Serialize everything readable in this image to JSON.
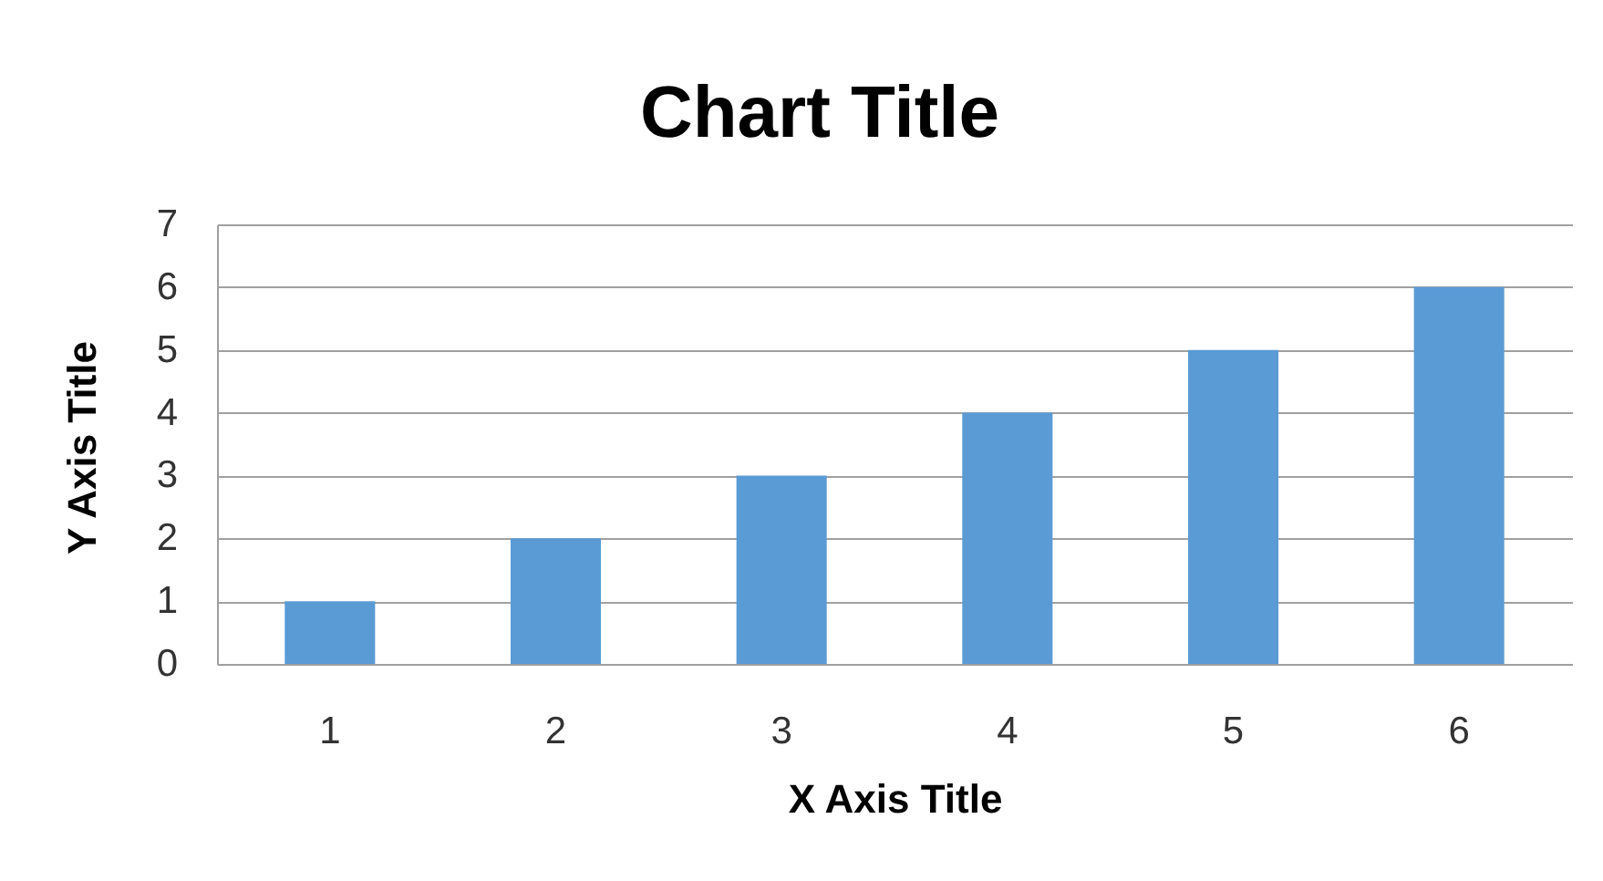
{
  "chart_data": {
    "type": "bar",
    "title": "Chart Title",
    "xlabel": "X Axis Title",
    "ylabel": "Y Axis Title",
    "categories": [
      "1",
      "2",
      "3",
      "4",
      "5",
      "6"
    ],
    "values": [
      1,
      2,
      3,
      4,
      5,
      6
    ],
    "color": "#5b9bd5",
    "ylim": [
      0,
      7
    ],
    "yticks": [
      0,
      1,
      2,
      3,
      4,
      5,
      6,
      7
    ],
    "grid": "y"
  }
}
